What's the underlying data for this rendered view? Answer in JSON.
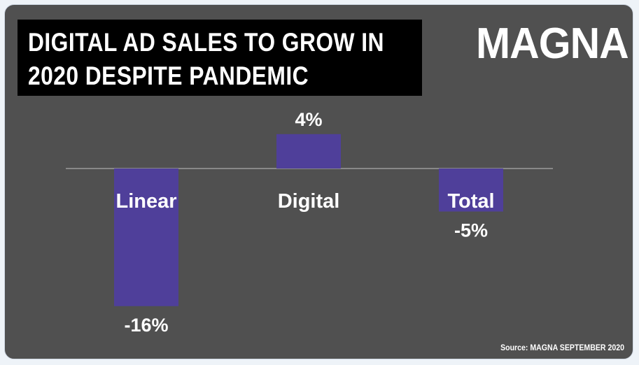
{
  "title_lines": [
    "DIGITAL AD SALES TO GROW IN",
    "2020 DESPITE PANDEMIC"
  ],
  "brand": "MAGNA",
  "source": "Source: MAGNA SEPTEMBER 2020",
  "colors": {
    "background": "#505050",
    "bar": "#4f3f9a",
    "title_box": "#000000",
    "text": "#ffffff",
    "axis": "#9a9a9a"
  },
  "chart_data": {
    "type": "bar",
    "categories": [
      "Linear",
      "Digital",
      "Total"
    ],
    "values": [
      -16,
      4,
      -5
    ],
    "value_labels": [
      "-16%",
      "4%",
      "-5%"
    ],
    "title": "DIGITAL AD SALES TO GROW IN 2020 DESPITE PANDEMIC",
    "grid": false,
    "legend": "none"
  }
}
